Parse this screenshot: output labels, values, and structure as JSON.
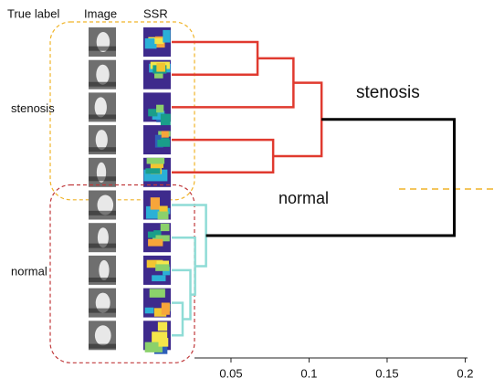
{
  "chart_data": {
    "type": "dendrogram",
    "column_headers": [
      "True label",
      "Image",
      "SSR"
    ],
    "groups": [
      {
        "label": "stenosis",
        "cluster_label": "stenosis",
        "color": "#e03a2f",
        "box_color": "#f0b429",
        "links": [
          {
            "children": [
              0,
              1
            ],
            "height": 0.067
          },
          {
            "children": [
              10,
              2
            ],
            "height": 0.09
          },
          {
            "children": [
              3,
              4
            ],
            "height": 0.077
          },
          {
            "children": [
              11,
              12
            ],
            "height": 0.108
          }
        ]
      },
      {
        "label": "normal",
        "cluster_label": "normal",
        "color": "#8fdcd6",
        "box_color": "#c0393b",
        "links": [
          {
            "children": [
              8,
              9
            ],
            "height": 0.019
          },
          {
            "children": [
              7,
              14
            ],
            "height": 0.024
          },
          {
            "children": [
              6,
              15
            ],
            "height": 0.027
          },
          {
            "children": [
              5,
              16
            ],
            "height": 0.034
          }
        ]
      }
    ],
    "root": {
      "children": [
        13,
        17
      ],
      "height": 0.193,
      "color": "#000000"
    },
    "xlim": [
      0.012,
      0.205
    ],
    "xticks": [
      0.05,
      0.1,
      0.15,
      0.2
    ]
  }
}
